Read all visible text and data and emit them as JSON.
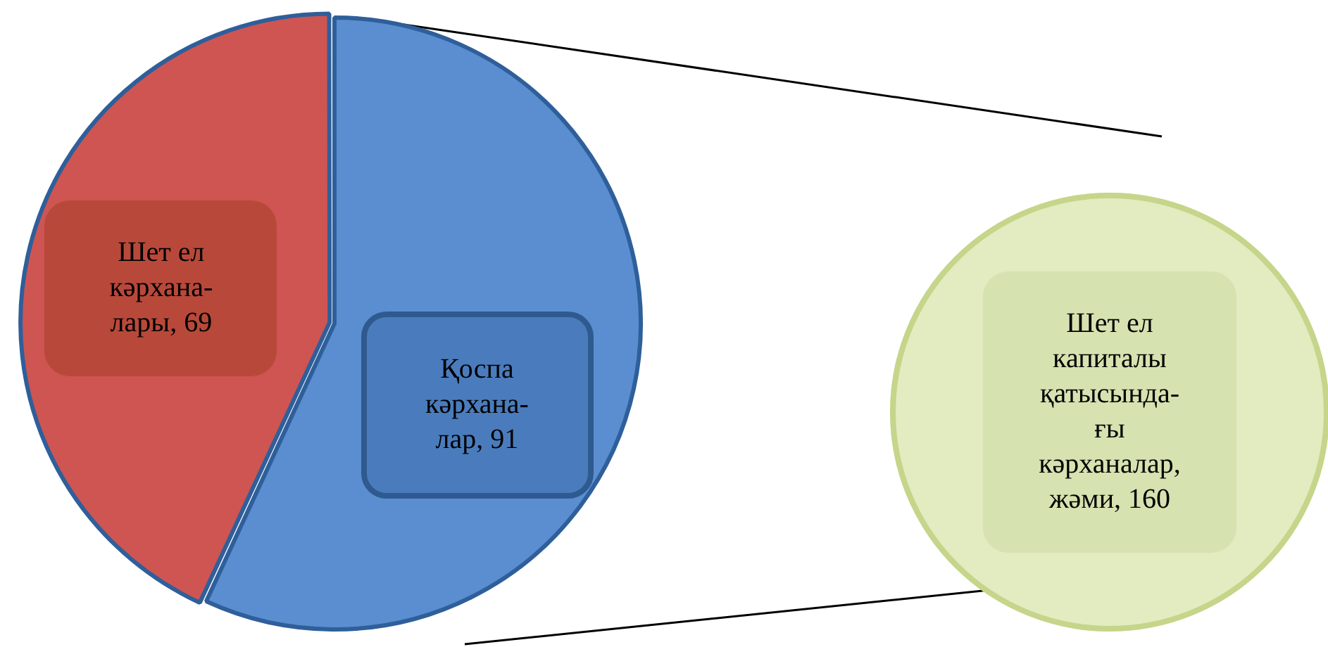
{
  "chart_data": [
    {
      "type": "pie",
      "categories": [
        "Қоспа кәрхана-лар",
        "Шет ел кәрхана-лары"
      ],
      "values": [
        91,
        69
      ],
      "value_labels": [
        ", 91",
        ", 69"
      ],
      "colors": [
        "#5a8ed0",
        "#cf5552"
      ]
    },
    {
      "type": "pie",
      "categories": [
        "Шет ел капиталы қатысында-ғы кәрханалар, жәми"
      ],
      "values": [
        160
      ],
      "value_labels": [
        ", 160"
      ],
      "colors": [
        "#e3ebc0"
      ]
    }
  ]
}
